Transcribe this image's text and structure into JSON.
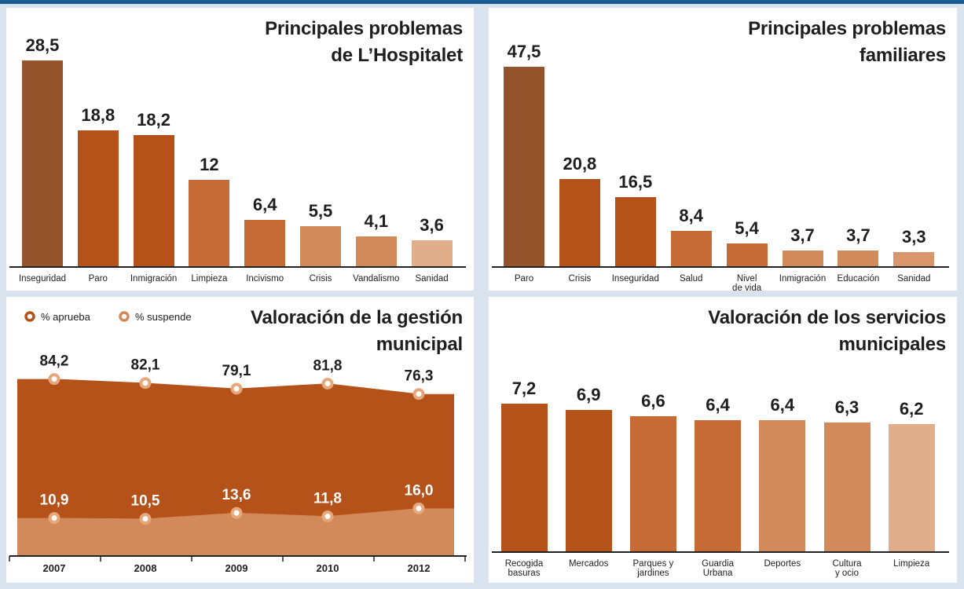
{
  "chart_data": [
    {
      "type": "bar",
      "title": "Principales problemas\nde L’Hospitalet",
      "categories": [
        "Inseguridad",
        "Paro",
        "Inmigración",
        "Limpieza",
        "Incivismo",
        "Crisis",
        "Vandalismo",
        "Sanidad"
      ],
      "values": [
        28.5,
        18.8,
        18.2,
        12,
        6.4,
        5.5,
        4.1,
        3.6
      ],
      "value_labels": [
        "28,5",
        "18,8",
        "18,2",
        "12",
        "6,4",
        "5,5",
        "4,1",
        "3,6"
      ],
      "colors": [
        "#95532b",
        "#b5521a",
        "#b5521a",
        "#c66a36",
        "#c66a36",
        "#d38a5b",
        "#d38a5b",
        "#e0ae8a"
      ]
    },
    {
      "type": "bar",
      "title": "Principales problemas\nfamiliares",
      "categories": [
        "Paro",
        "Crisis",
        "Inseguridad",
        "Salud",
        "Nivel\nde vida",
        "Inmigración",
        "Educación",
        "Sanidad"
      ],
      "values": [
        47.5,
        20.8,
        16.5,
        8.4,
        5.4,
        3.7,
        3.7,
        3.3
      ],
      "value_labels": [
        "47,5",
        "20,8",
        "16,5",
        "8,4",
        "5,4",
        "3,7",
        "3,7",
        "3,3"
      ],
      "colors": [
        "#95532b",
        "#b5521a",
        "#b5521a",
        "#c66a36",
        "#c66a36",
        "#d38a5b",
        "#d38a5b",
        "#d9966b"
      ]
    },
    {
      "type": "area",
      "title": "Valoración de la gestión\nmunicipal",
      "categories": [
        "2007",
        "2008",
        "2009",
        "2010",
        "2012"
      ],
      "series": [
        {
          "name": "% aprueba",
          "color": "#b5521a",
          "values": [
            84.2,
            82.1,
            79.1,
            81.8,
            76.3
          ],
          "value_labels": [
            "84,2",
            "82,1",
            "79,1",
            "81,8",
            "76,3"
          ]
        },
        {
          "name": "% suspende",
          "color": "#d38a5b",
          "values": [
            10.9,
            10.5,
            13.6,
            11.8,
            16.0
          ],
          "value_labels": [
            "10,9",
            "10,5",
            "13,6",
            "11,8",
            "16,0"
          ]
        }
      ]
    },
    {
      "type": "bar",
      "title": "Valoración de los servicios\nmunicipales",
      "categories": [
        "Recogida\nbasuras",
        "Mercados",
        "Parques y\njardines",
        "Guardia\nUrbana",
        "Deportes",
        "Cultura\ny ocio",
        "Limpieza"
      ],
      "values": [
        7.2,
        6.9,
        6.6,
        6.4,
        6.4,
        6.3,
        6.2
      ],
      "value_labels": [
        "7,2",
        "6,9",
        "6,6",
        "6,4",
        "6,4",
        "6,3",
        "6,2"
      ],
      "colors": [
        "#b5521a",
        "#b5521a",
        "#c66a36",
        "#c66a36",
        "#d38a5b",
        "#d38a5b",
        "#e0ae8a"
      ]
    }
  ]
}
